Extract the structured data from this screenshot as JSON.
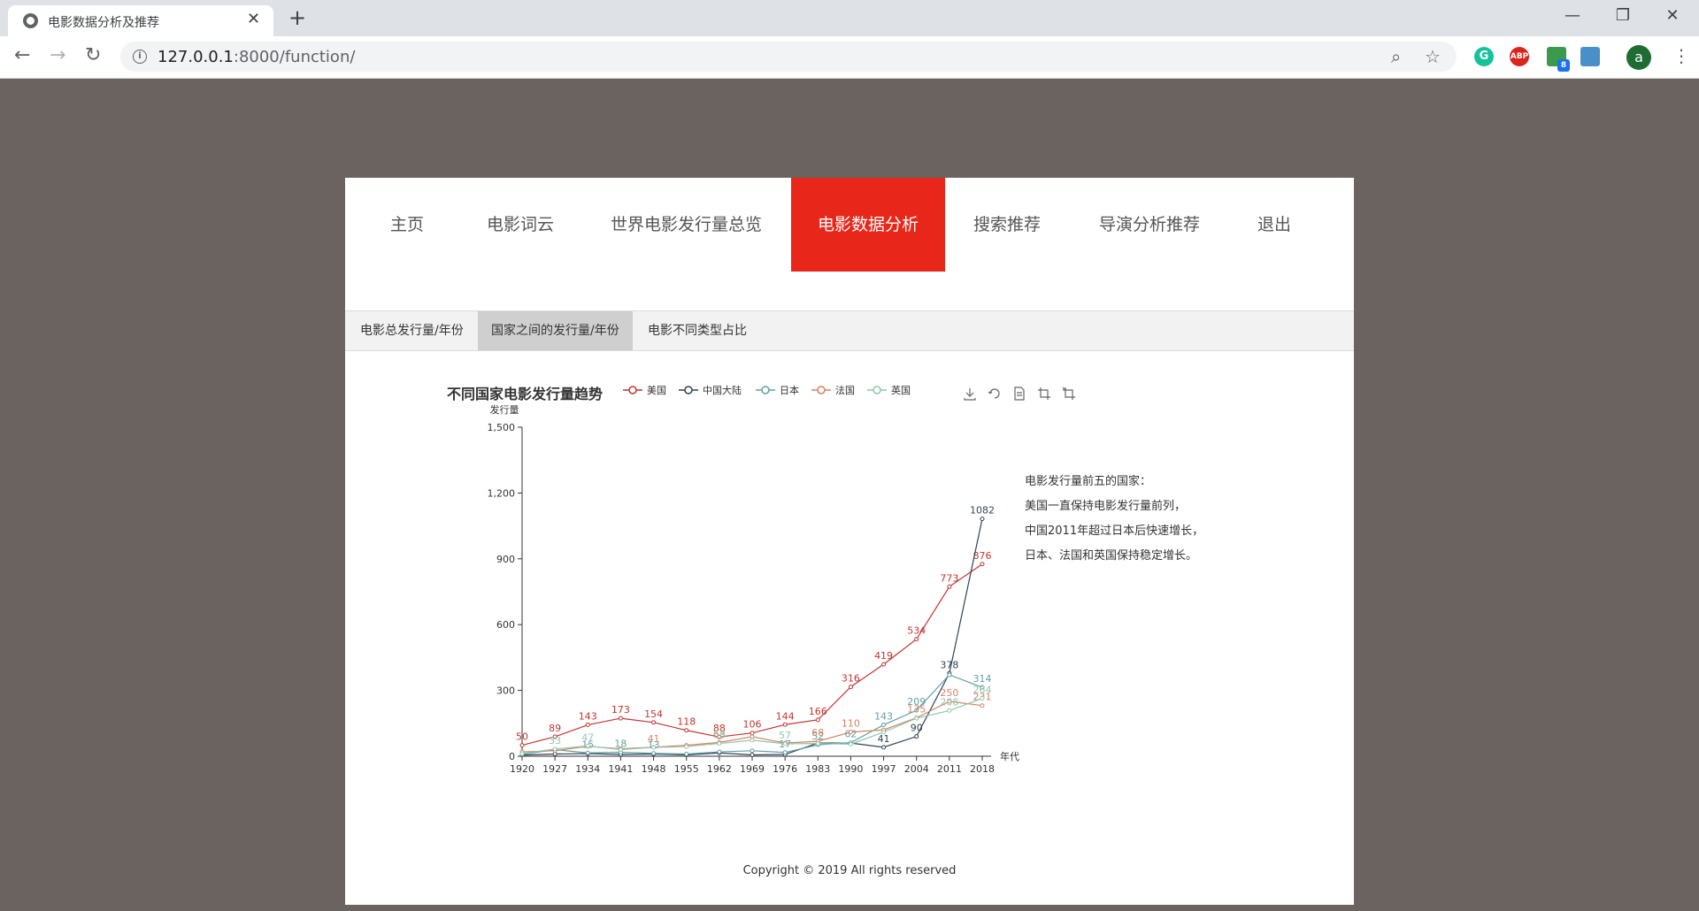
{
  "browser": {
    "tab_title": "电影数据分析及推荐",
    "url_host": "127.0.0.1",
    "url_path": ":8000/function/",
    "ext_abp": "ABP",
    "ext_badge": "8",
    "avatar_letter": "a"
  },
  "nav": {
    "items": [
      "主页",
      "电影词云",
      "世界电影发行量总览",
      "电影数据分析",
      "搜索推荐",
      "导演分析推荐",
      "退出"
    ],
    "active_index": 3,
    "active_color": "#e8261a"
  },
  "subtabs": {
    "items": [
      "电影总发行量/年份",
      "国家之间的发行量/年份",
      "电影不同类型占比"
    ],
    "active_index": 1
  },
  "notes": {
    "lines": [
      "电影发行量前五的国家：",
      "美国一直保持电影发行量前列，",
      "中国2011年超过日本后快速增长，",
      "日本、法国和英国保持稳定增长。"
    ]
  },
  "footer": {
    "copyright": "Copyright © 2019 All rights reserved"
  },
  "chart_data": {
    "type": "line",
    "title": "不同国家电影发行量趋势",
    "xlabel": "年代",
    "ylabel": "发行量",
    "ylim": [
      0,
      1500
    ],
    "yticks": [
      0,
      300,
      600,
      900,
      1200,
      1500
    ],
    "ytick_labels": [
      "0",
      "300",
      "600",
      "900",
      "1,200",
      "1,500"
    ],
    "x": [
      1920,
      1927,
      1934,
      1941,
      1948,
      1955,
      1962,
      1969,
      1976,
      1983,
      1990,
      1997,
      2004,
      2011,
      2018
    ],
    "xtick_labels": [
      "1920",
      "1927",
      "1934",
      "1941",
      "1948",
      "1955",
      "1962",
      "1969",
      "1976",
      "1983",
      "1990",
      "1997",
      "2004",
      "2011",
      "2018"
    ],
    "legend_position": "top",
    "grid": false,
    "toolbox_icons": [
      "download-icon",
      "refresh-icon",
      "data-view-icon",
      "zoom-icon",
      "zoom-reset-icon"
    ],
    "series": [
      {
        "name": "美国",
        "color": "#c23531",
        "values": [
          50,
          89,
          143,
          173,
          154,
          118,
          88,
          106,
          144,
          166,
          316,
          419,
          534,
          773,
          876
        ],
        "labels": [
          "50",
          "89",
          "143",
          "173",
          "154",
          "118",
          "88",
          "106",
          "144",
          "166",
          "316",
          "419",
          "534",
          "773",
          "876"
        ]
      },
      {
        "name": "中国大陆",
        "color": "#2f4554",
        "values": [
          5,
          10,
          12,
          8,
          10,
          6,
          15,
          6,
          8,
          60,
          60,
          41,
          90,
          378,
          1082
        ],
        "labels": [
          "",
          "",
          "",
          "",
          "",
          "",
          "",
          "",
          "",
          "",
          "",
          "41",
          "90",
          "378",
          "1082"
        ]
      },
      {
        "name": "日本",
        "color": "#61a0a8",
        "values": [
          8,
          30,
          15,
          18,
          13,
          10,
          20,
          25,
          17,
          52,
          62,
          143,
          209,
          371,
          314
        ],
        "labels": [
          "",
          "",
          "15",
          "18",
          "13",
          "",
          "",
          "",
          "17",
          "52",
          "62",
          "143",
          "209",
          "",
          "314"
        ]
      },
      {
        "name": "法国",
        "color": "#d48265",
        "values": [
          20,
          25,
          45,
          34,
          41,
          50,
          63,
          89,
          60,
          68,
          110,
          120,
          175,
          250,
          231
        ],
        "labels": [
          "",
          "",
          "",
          "",
          "41",
          "",
          "63",
          "",
          "",
          "68",
          "110",
          "",
          "175",
          "250",
          "231"
        ]
      },
      {
        "name": "英国",
        "color": "#91c7ae",
        "values": [
          12,
          33,
          47,
          30,
          40,
          44,
          58,
          73,
          57,
          58,
          55,
          110,
          173,
          208,
          264
        ],
        "labels": [
          "",
          "33",
          "47",
          "",
          "",
          "",
          "58",
          "",
          "57",
          "",
          "",
          "",
          "",
          "208",
          "264"
        ]
      }
    ]
  }
}
